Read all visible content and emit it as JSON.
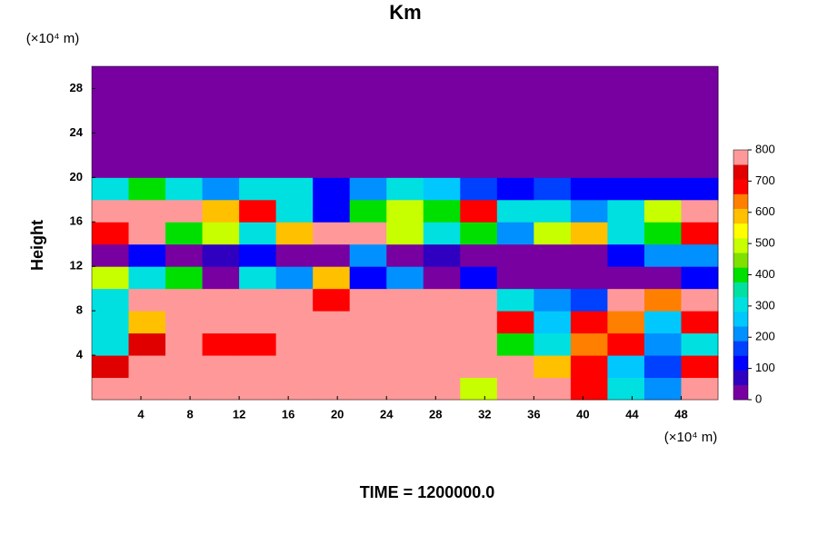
{
  "chart_data": {
    "type": "heatmap",
    "title": "Km",
    "y_unit": "(×10⁴ m)",
    "x_unit": "(×10⁴ m)",
    "y_label": "Height",
    "footer": "TIME = 1200000.0",
    "xlim": [
      0,
      51
    ],
    "ylim": [
      0,
      30
    ],
    "xticks": [
      4,
      8,
      12,
      16,
      20,
      24,
      28,
      32,
      36,
      40,
      44,
      48
    ],
    "yticks": [
      4,
      8,
      12,
      16,
      20,
      24,
      28
    ],
    "x_edges": [
      0,
      3,
      6,
      9,
      12,
      15,
      18,
      21,
      24,
      27,
      30,
      33,
      36,
      39,
      42,
      45,
      48,
      51
    ],
    "y_edges": [
      0,
      2,
      4,
      6,
      8,
      10,
      12,
      14,
      16,
      18,
      20,
      22,
      24,
      26,
      28,
      30
    ],
    "z": [
      [
        800,
        800,
        800,
        800,
        800,
        800,
        800,
        800,
        800,
        800,
        500,
        800,
        800,
        700,
        300,
        200,
        800
      ],
      [
        750,
        800,
        800,
        800,
        800,
        800,
        800,
        800,
        800,
        800,
        800,
        800,
        600,
        700,
        250,
        150,
        700
      ],
      [
        300,
        750,
        800,
        700,
        700,
        800,
        800,
        800,
        800,
        800,
        800,
        400,
        300,
        650,
        700,
        200,
        300
      ],
      [
        300,
        600,
        800,
        800,
        800,
        800,
        800,
        800,
        800,
        800,
        800,
        700,
        250,
        700,
        650,
        250,
        700
      ],
      [
        300,
        800,
        800,
        800,
        800,
        800,
        700,
        800,
        800,
        800,
        800,
        300,
        200,
        150,
        800,
        650,
        800
      ],
      [
        500,
        300,
        400,
        0,
        300,
        200,
        600,
        100,
        200,
        0,
        100,
        0,
        0,
        0,
        0,
        0,
        100
      ],
      [
        0,
        100,
        0,
        50,
        100,
        0,
        0,
        200,
        0,
        50,
        0,
        0,
        0,
        0,
        100,
        200,
        200
      ],
      [
        700,
        800,
        400,
        500,
        300,
        600,
        800,
        800,
        500,
        300,
        400,
        200,
        500,
        600,
        300,
        400,
        700
      ],
      [
        800,
        800,
        800,
        600,
        700,
        300,
        100,
        400,
        500,
        400,
        700,
        300,
        300,
        200,
        300,
        500,
        800
      ],
      [
        300,
        400,
        300,
        200,
        300,
        300,
        100,
        200,
        300,
        250,
        150,
        100,
        150,
        100,
        100,
        100,
        100
      ],
      [
        0,
        0,
        0,
        0,
        0,
        0,
        0,
        0,
        0,
        0,
        0,
        0,
        0,
        0,
        0,
        0,
        0
      ],
      [
        0,
        0,
        0,
        0,
        0,
        0,
        0,
        0,
        0,
        0,
        0,
        0,
        0,
        0,
        0,
        0,
        0
      ],
      [
        0,
        0,
        0,
        0,
        0,
        0,
        0,
        0,
        0,
        0,
        0,
        0,
        0,
        0,
        0,
        0,
        0
      ],
      [
        0,
        0,
        0,
        0,
        0,
        0,
        0,
        0,
        0,
        0,
        0,
        0,
        0,
        0,
        0,
        0,
        0
      ],
      [
        0,
        0,
        0,
        0,
        0,
        0,
        0,
        0,
        0,
        0,
        0,
        0,
        0,
        0,
        0,
        0,
        0
      ]
    ],
    "levels": [
      0,
      50,
      100,
      150,
      200,
      250,
      300,
      350,
      400,
      450,
      500,
      550,
      600,
      650,
      700,
      750,
      800
    ],
    "colors": [
      "#7800a0",
      "#3000c0",
      "#0000ff",
      "#0040ff",
      "#0090ff",
      "#00c8ff",
      "#00e0e0",
      "#00e0a0",
      "#00e000",
      "#80e000",
      "#c8ff00",
      "#ffff00",
      "#ffc000",
      "#ff8000",
      "#ff0000",
      "#e00000",
      "#ff9999"
    ],
    "colorbar_ticks": [
      0,
      100,
      200,
      300,
      400,
      500,
      600,
      700,
      800
    ]
  }
}
